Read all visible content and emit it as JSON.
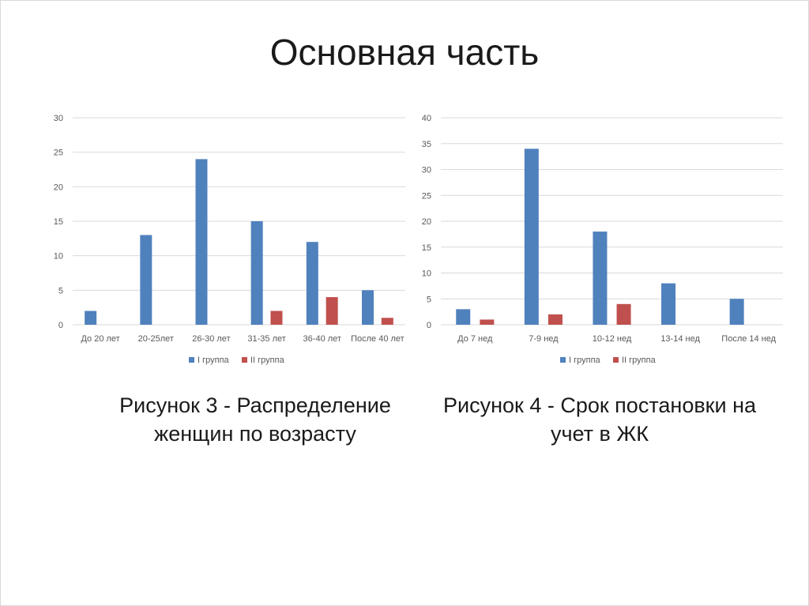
{
  "slide_title": "Основная часть",
  "colors": {
    "series1": "#4f81bd",
    "series2": "#c0504d",
    "grid": "#d9d9d9",
    "text": "#595959"
  },
  "captions": [
    {
      "line1": "Рисунок 3 - Распределение",
      "line2": "женщин по возрасту"
    },
    {
      "line1": "Рисунок 4 - Срок постановки на",
      "line2": "учет в ЖК"
    }
  ],
  "chart_data": [
    {
      "type": "bar",
      "categories": [
        "До 20 лет",
        "20-25лет",
        "26-30 лет",
        "31-35 лет",
        "36-40 лет",
        "После 40 лет"
      ],
      "series": [
        {
          "name": "I группа",
          "values": [
            2,
            13,
            24,
            15,
            12,
            5
          ]
        },
        {
          "name": "II группа",
          "values": [
            0,
            0,
            0,
            2,
            4,
            1
          ]
        }
      ],
      "ylim": [
        0,
        30
      ],
      "yticks": [
        0,
        5,
        10,
        15,
        20,
        25,
        30
      ],
      "grid": true,
      "legend": "bottom"
    },
    {
      "type": "bar",
      "categories": [
        "До 7 нед",
        "7-9 нед",
        "10-12 нед",
        "13-14 нед",
        "После 14 нед"
      ],
      "series": [
        {
          "name": "I группа",
          "values": [
            3,
            34,
            18,
            8,
            5
          ]
        },
        {
          "name": "II группа",
          "values": [
            1,
            2,
            4,
            0,
            0
          ]
        }
      ],
      "ylim": [
        0,
        40
      ],
      "yticks": [
        0,
        5,
        10,
        15,
        20,
        25,
        30,
        35,
        40
      ],
      "grid": true,
      "legend": "bottom"
    }
  ]
}
